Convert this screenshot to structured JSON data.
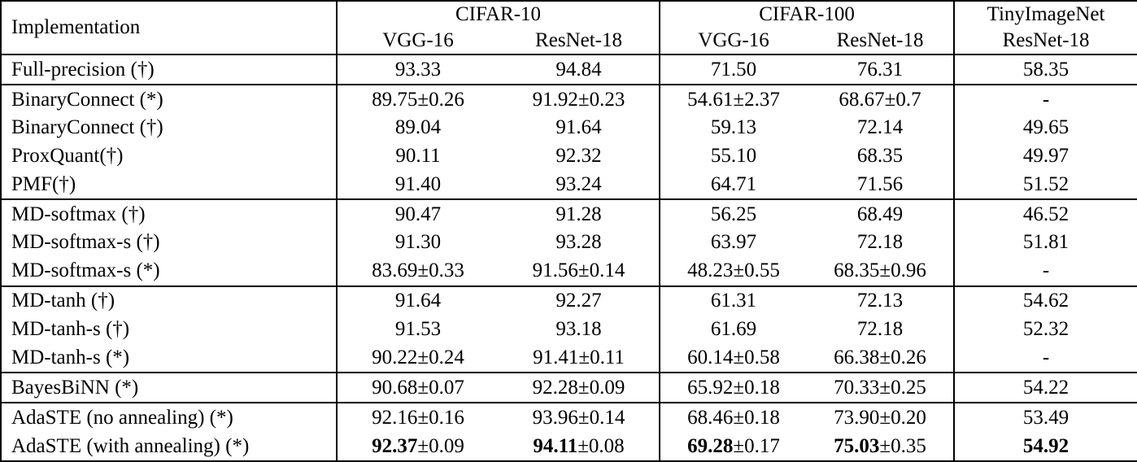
{
  "table": {
    "header": {
      "implementation": "Implementation",
      "groups": [
        {
          "label": "CIFAR-10",
          "cols": [
            "VGG-16",
            "ResNet-18"
          ]
        },
        {
          "label": "CIFAR-100",
          "cols": [
            "VGG-16",
            "ResNet-18"
          ]
        },
        {
          "label": "TinyImageNet",
          "cols": [
            "ResNet-18"
          ]
        }
      ]
    },
    "rows": [
      {
        "label": "Full-precision (†)",
        "group_start": true,
        "cells": [
          {
            "v": "93.33"
          },
          {
            "v": "94.84"
          },
          {
            "v": "71.50"
          },
          {
            "v": "76.31"
          },
          {
            "v": "58.35"
          }
        ]
      },
      {
        "label": "BinaryConnect (*)",
        "group_start": true,
        "cells": [
          {
            "v": "89.75",
            "pm": "±0.26"
          },
          {
            "v": "91.92",
            "pm": "±0.23"
          },
          {
            "v": "54.61",
            "pm": "±2.37"
          },
          {
            "v": "68.67",
            "pm": "±0.7"
          },
          {
            "v": "-"
          }
        ]
      },
      {
        "label": "BinaryConnect (†)",
        "group_start": false,
        "cells": [
          {
            "v": "89.04"
          },
          {
            "v": "91.64"
          },
          {
            "v": "59.13"
          },
          {
            "v": "72.14"
          },
          {
            "v": "49.65"
          }
        ]
      },
      {
        "label": "ProxQuant(†)",
        "group_start": false,
        "cells": [
          {
            "v": "90.11"
          },
          {
            "v": "92.32"
          },
          {
            "v": "55.10"
          },
          {
            "v": "68.35"
          },
          {
            "v": "49.97"
          }
        ]
      },
      {
        "label": "PMF(†)",
        "group_start": false,
        "cells": [
          {
            "v": "91.40"
          },
          {
            "v": "93.24"
          },
          {
            "v": "64.71"
          },
          {
            "v": "71.56"
          },
          {
            "v": "51.52"
          }
        ]
      },
      {
        "label": "MD-softmax (†)",
        "group_start": true,
        "cells": [
          {
            "v": "90.47"
          },
          {
            "v": "91.28"
          },
          {
            "v": "56.25"
          },
          {
            "v": "68.49"
          },
          {
            "v": "46.52"
          }
        ]
      },
      {
        "label": "MD-softmax-s (†)",
        "group_start": false,
        "cells": [
          {
            "v": "91.30"
          },
          {
            "v": "93.28"
          },
          {
            "v": "63.97"
          },
          {
            "v": "72.18"
          },
          {
            "v": "51.81"
          }
        ]
      },
      {
        "label": "MD-softmax-s (*)",
        "group_start": false,
        "cells": [
          {
            "v": "83.69",
            "pm": "±0.33"
          },
          {
            "v": "91.56",
            "pm": "±0.14"
          },
          {
            "v": "48.23",
            "pm": "±0.55"
          },
          {
            "v": "68.35",
            "pm": "±0.96"
          },
          {
            "v": "-"
          }
        ]
      },
      {
        "label": "MD-tanh (†)",
        "group_start": true,
        "cells": [
          {
            "v": "91.64"
          },
          {
            "v": "92.27"
          },
          {
            "v": "61.31"
          },
          {
            "v": "72.13"
          },
          {
            "v": "54.62"
          }
        ]
      },
      {
        "label": "MD-tanh-s (†)",
        "group_start": false,
        "cells": [
          {
            "v": "91.53"
          },
          {
            "v": "93.18"
          },
          {
            "v": "61.69"
          },
          {
            "v": "72.18"
          },
          {
            "v": "52.32"
          }
        ]
      },
      {
        "label": "MD-tanh-s (*)",
        "group_start": false,
        "cells": [
          {
            "v": "90.22",
            "pm": "±0.24"
          },
          {
            "v": "91.41",
            "pm": "±0.11"
          },
          {
            "v": "60.14",
            "pm": "±0.58"
          },
          {
            "v": "66.38",
            "pm": "±0.26"
          },
          {
            "v": "-"
          }
        ]
      },
      {
        "label": "BayesBiNN (*)",
        "group_start": true,
        "cells": [
          {
            "v": "90.68",
            "pm": "±0.07"
          },
          {
            "v": "92.28",
            "pm": "±0.09"
          },
          {
            "v": "65.92",
            "pm": "±0.18"
          },
          {
            "v": "70.33",
            "pm": "±0.25"
          },
          {
            "v": "54.22"
          }
        ]
      },
      {
        "label": "AdaSTE (no annealing) (*)",
        "group_start": true,
        "cells": [
          {
            "v": "92.16",
            "pm": "±0.16"
          },
          {
            "v": "93.96",
            "pm": "±0.14"
          },
          {
            "v": "68.46",
            "pm": "±0.18"
          },
          {
            "v": "73.90",
            "pm": "±0.20"
          },
          {
            "v": "53.49"
          }
        ]
      },
      {
        "label": "AdaSTE (with annealing) (*)",
        "group_start": false,
        "cells": [
          {
            "v": "92.37",
            "pm": "±0.09",
            "bold": true
          },
          {
            "v": "94.11",
            "pm": "±0.08",
            "bold": true
          },
          {
            "v": "69.28",
            "pm": "±0.17",
            "bold": true
          },
          {
            "v": "75.03",
            "pm": "±0.35",
            "bold": true
          },
          {
            "v": "54.92",
            "bold": true
          }
        ]
      }
    ]
  }
}
